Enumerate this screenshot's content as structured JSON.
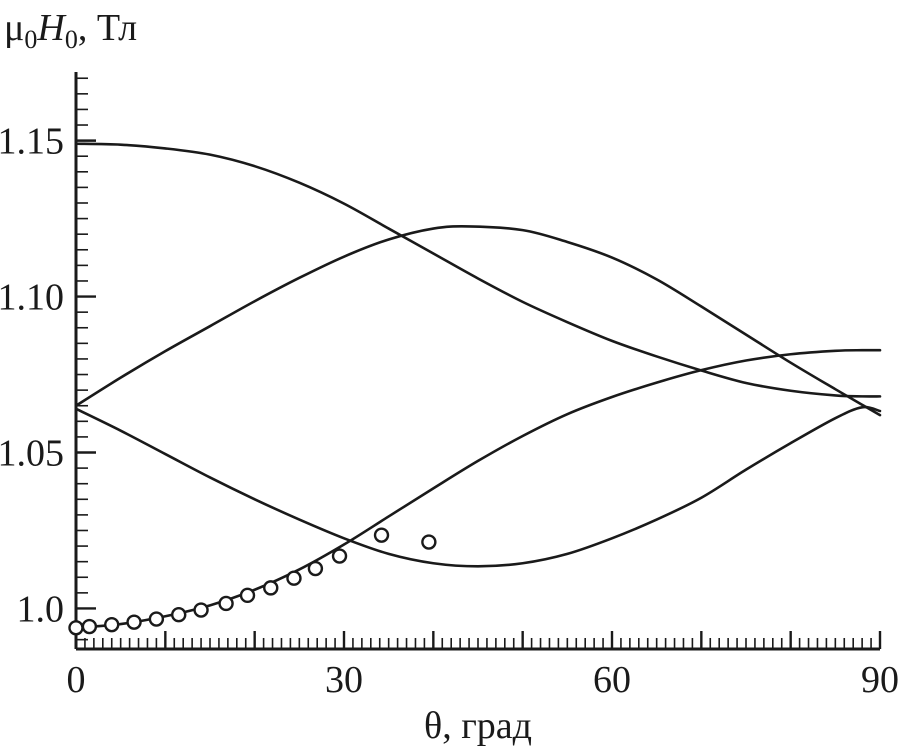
{
  "chart_data": {
    "type": "line",
    "ylabel_parts": {
      "symbol": "μ",
      "sub1": "0",
      "var": "H",
      "sub2": "0",
      "unit": ", Тл"
    },
    "xlabel": "θ, град",
    "xlim": [
      0,
      90
    ],
    "ylim": [
      0.987,
      1.172
    ],
    "x_ticks": [
      0,
      30,
      60,
      90
    ],
    "x_tick_labels": [
      "0",
      "30",
      "60",
      "90"
    ],
    "y_ticks": [
      1.0,
      1.05,
      1.1,
      1.15
    ],
    "y_tick_labels": [
      "1.0",
      "1.05",
      "1.10",
      "1.15"
    ],
    "color": "#1a1a1a",
    "series": [
      {
        "x": [
          0,
          5,
          10,
          15,
          20,
          25,
          30,
          35,
          40,
          45,
          50,
          55,
          60,
          65,
          70,
          75,
          80,
          85,
          88,
          90
        ],
        "y": [
          1.149,
          1.1487,
          1.1475,
          1.1455,
          1.1418,
          1.1365,
          1.1298,
          1.1218,
          1.1138,
          1.1058,
          1.0983,
          1.0918,
          1.0858,
          1.0808,
          1.0763,
          1.0723,
          1.0698,
          1.0683,
          1.068,
          1.068
        ]
      },
      {
        "x": [
          0,
          5,
          10,
          15,
          20,
          25,
          30,
          35,
          40,
          44,
          50,
          55,
          60,
          65,
          70,
          75,
          80,
          85,
          88,
          90
        ],
        "y": [
          1.065,
          1.074,
          1.0825,
          1.0905,
          1.0985,
          1.106,
          1.1128,
          1.1183,
          1.1218,
          1.1225,
          1.1213,
          1.1175,
          1.1125,
          1.1055,
          1.0968,
          1.0878,
          1.0788,
          1.0703,
          1.0653,
          1.062
        ]
      },
      {
        "x": [
          0,
          5,
          10,
          15,
          20,
          25,
          30,
          35,
          40,
          45,
          50,
          55,
          60,
          65,
          70,
          75,
          80,
          85,
          88,
          90
        ],
        "y": [
          1.064,
          1.057,
          1.0495,
          1.042,
          1.035,
          1.0285,
          1.0225,
          1.0175,
          1.0145,
          1.0135,
          1.0145,
          1.0175,
          1.0225,
          1.0285,
          1.0355,
          1.0445,
          1.053,
          1.061,
          1.0645,
          1.0633
        ]
      },
      {
        "x": [
          0,
          5,
          10,
          15,
          20,
          25,
          30,
          35,
          40,
          45,
          50,
          55,
          60,
          65,
          70,
          75,
          80,
          85,
          88,
          90
        ],
        "y": [
          0.9938,
          0.995,
          0.9975,
          1.001,
          1.006,
          1.0125,
          1.0205,
          1.0295,
          1.0385,
          1.0473,
          1.0553,
          1.0623,
          1.0678,
          1.0724,
          1.0764,
          1.0795,
          1.0815,
          1.0826,
          1.0828,
          1.0828
        ]
      }
    ],
    "markers": {
      "style": "open-circle",
      "x": [
        0,
        1.5,
        4,
        6.5,
        9,
        11.5,
        14,
        16.8,
        19.2,
        21.8,
        24.4,
        26.8,
        29.5,
        34.2,
        39.5
      ],
      "y": [
        0.9938,
        0.9942,
        0.9948,
        0.9956,
        0.9966,
        0.998,
        0.9995,
        1.0016,
        1.0042,
        1.0066,
        1.0097,
        1.0128,
        1.0168,
        1.0235,
        1.0213
      ]
    }
  }
}
